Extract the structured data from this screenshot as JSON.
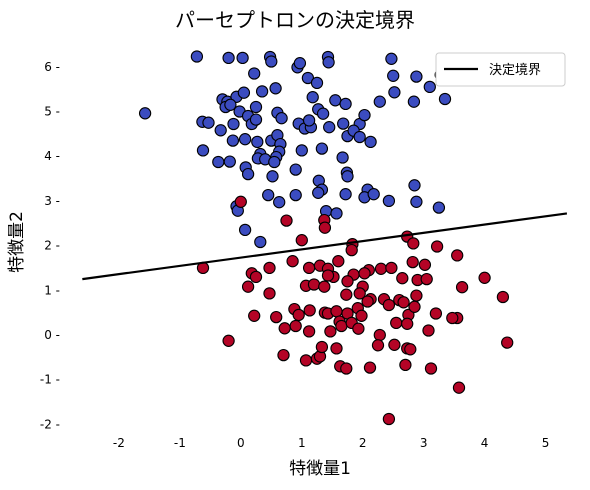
{
  "chart_data": {
    "type": "scatter",
    "title": "パーセプトロンの決定境界",
    "xlabel": "特徴量1",
    "ylabel": "特徴量2",
    "xlim": [
      -2.95,
      5.45
    ],
    "ylim": [
      -2.35,
      6.6
    ],
    "xticks": [
      -2,
      -1,
      0,
      1,
      2,
      3,
      4,
      5
    ],
    "yticks": [
      -2,
      -1,
      0,
      1,
      2,
      3,
      4,
      5,
      6
    ],
    "grid": false,
    "legend_position": "top-right",
    "legend": [
      {
        "label": "決定境界",
        "color": "#000000"
      }
    ],
    "decision_boundary": {
      "x": [
        -2.6,
        5.35
      ],
      "y": [
        1.25,
        2.72
      ]
    },
    "series": [
      {
        "color": "#3b4cc0",
        "points": [
          [
            -0.72,
            6.23
          ],
          [
            -0.2,
            6.2
          ],
          [
            0.03,
            6.2
          ],
          [
            0.48,
            6.22
          ],
          [
            0.5,
            6.12
          ],
          [
            0.93,
            5.99
          ],
          [
            0.97,
            6.08
          ],
          [
            1.43,
            6.22
          ],
          [
            1.44,
            6.1
          ],
          [
            2.47,
            6.18
          ],
          [
            3.55,
            6.17
          ],
          [
            0.22,
            5.85
          ],
          [
            1.1,
            5.75
          ],
          [
            1.25,
            5.64
          ],
          [
            2.5,
            5.8
          ],
          [
            2.88,
            5.78
          ],
          [
            3.28,
            5.82
          ],
          [
            3.1,
            5.55
          ],
          [
            -1.57,
            4.96
          ],
          [
            -0.3,
            5.27
          ],
          [
            -0.22,
            5.22
          ],
          [
            -0.07,
            5.33
          ],
          [
            -0.25,
            5.1
          ],
          [
            -0.17,
            5.15
          ],
          [
            0.05,
            5.42
          ],
          [
            0.35,
            5.45
          ],
          [
            0.57,
            5.52
          ],
          [
            0.25,
            5.1
          ],
          [
            1.18,
            5.32
          ],
          [
            1.27,
            5.05
          ],
          [
            -0.02,
            5.0
          ],
          [
            0.12,
            4.9
          ],
          [
            0.6,
            4.97
          ],
          [
            0.67,
            4.85
          ],
          [
            1.55,
            5.25
          ],
          [
            1.72,
            5.17
          ],
          [
            2.28,
            5.22
          ],
          [
            2.52,
            5.43
          ],
          [
            2.84,
            5.22
          ],
          [
            3.35,
            5.28
          ],
          [
            1.35,
            4.95
          ],
          [
            -0.63,
            4.77
          ],
          [
            -0.53,
            4.75
          ],
          [
            -0.33,
            4.58
          ],
          [
            -0.12,
            4.72
          ],
          [
            0.18,
            4.72
          ],
          [
            0.25,
            4.82
          ],
          [
            0.95,
            4.73
          ],
          [
            1.05,
            4.62
          ],
          [
            1.15,
            4.65
          ],
          [
            1.12,
            4.8
          ],
          [
            1.45,
            4.65
          ],
          [
            1.68,
            4.73
          ],
          [
            1.95,
            4.72
          ],
          [
            2.03,
            4.92
          ],
          [
            -0.13,
            4.35
          ],
          [
            0.07,
            4.38
          ],
          [
            0.27,
            4.32
          ],
          [
            0.32,
            4.05
          ],
          [
            0.5,
            4.35
          ],
          [
            0.6,
            4.47
          ],
          [
            0.65,
            4.27
          ],
          [
            0.63,
            4.1
          ],
          [
            1.75,
            4.45
          ],
          [
            1.85,
            4.57
          ],
          [
            1.95,
            4.43
          ],
          [
            2.13,
            4.32
          ],
          [
            -0.62,
            4.13
          ],
          [
            -0.37,
            3.87
          ],
          [
            -0.18,
            3.88
          ],
          [
            0.08,
            3.75
          ],
          [
            0.28,
            3.95
          ],
          [
            0.4,
            3.93
          ],
          [
            0.58,
            3.98
          ],
          [
            0.55,
            3.87
          ],
          [
            0.9,
            3.7
          ],
          [
            1.0,
            4.13
          ],
          [
            1.33,
            4.17
          ],
          [
            1.67,
            3.97
          ],
          [
            1.74,
            3.63
          ],
          [
            0.12,
            3.6
          ],
          [
            0.52,
            3.55
          ],
          [
            1.28,
            3.45
          ],
          [
            1.33,
            3.25
          ],
          [
            1.27,
            3.18
          ],
          [
            1.75,
            3.55
          ],
          [
            1.72,
            3.15
          ],
          [
            2.08,
            3.25
          ],
          [
            2.03,
            3.08
          ],
          [
            2.18,
            3.15
          ],
          [
            2.43,
            3.0
          ],
          [
            2.85,
            3.35
          ],
          [
            2.88,
            2.98
          ],
          [
            0.45,
            3.13
          ],
          [
            0.9,
            3.13
          ],
          [
            0.63,
            2.97
          ],
          [
            1.4,
            2.77
          ],
          [
            1.57,
            2.72
          ],
          [
            -0.07,
            2.88
          ],
          [
            -0.05,
            2.78
          ],
          [
            0.07,
            2.35
          ],
          [
            0.32,
            2.08
          ],
          [
            3.25,
            2.85
          ]
        ]
      },
      {
        "color": "#b40426",
        "points": [
          [
            0.0,
            2.98
          ],
          [
            0.75,
            2.56
          ],
          [
            1.37,
            2.57
          ],
          [
            1.38,
            2.4
          ],
          [
            1.0,
            2.12
          ],
          [
            1.83,
            2.03
          ],
          [
            1.82,
            1.9
          ],
          [
            2.73,
            2.2
          ],
          [
            2.83,
            2.05
          ],
          [
            3.22,
            1.98
          ],
          [
            -0.62,
            1.5
          ],
          [
            0.18,
            1.38
          ],
          [
            0.25,
            1.3
          ],
          [
            0.47,
            1.5
          ],
          [
            0.85,
            1.65
          ],
          [
            1.12,
            1.5
          ],
          [
            1.3,
            1.55
          ],
          [
            1.43,
            1.48
          ],
          [
            1.52,
            1.3
          ],
          [
            1.6,
            1.65
          ],
          [
            1.85,
            1.35
          ],
          [
            2.1,
            1.45
          ],
          [
            2.3,
            1.48
          ],
          [
            2.47,
            1.5
          ],
          [
            2.82,
            1.63
          ],
          [
            3.02,
            1.57
          ],
          [
            3.55,
            1.78
          ],
          [
            0.12,
            1.08
          ],
          [
            0.47,
            0.93
          ],
          [
            1.07,
            1.1
          ],
          [
            1.2,
            1.13
          ],
          [
            1.37,
            1.08
          ],
          [
            1.43,
            1.33
          ],
          [
            1.75,
            1.2
          ],
          [
            2.0,
            1.08
          ],
          [
            2.03,
            1.38
          ],
          [
            2.65,
            1.27
          ],
          [
            2.9,
            1.23
          ],
          [
            3.63,
            1.07
          ],
          [
            4.0,
            1.28
          ],
          [
            4.3,
            0.85
          ],
          [
            1.73,
            0.9
          ],
          [
            1.95,
            0.93
          ],
          [
            2.13,
            0.8
          ],
          [
            2.35,
            0.8
          ],
          [
            2.6,
            0.78
          ],
          [
            2.88,
            0.88
          ],
          [
            3.05,
            1.25
          ],
          [
            0.22,
            0.43
          ],
          [
            0.58,
            0.4
          ],
          [
            0.88,
            0.58
          ],
          [
            0.95,
            0.45
          ],
          [
            1.13,
            0.55
          ],
          [
            1.38,
            0.5
          ],
          [
            1.43,
            0.48
          ],
          [
            1.57,
            0.53
          ],
          [
            1.62,
            0.3
          ],
          [
            1.75,
            0.48
          ],
          [
            1.92,
            0.6
          ],
          [
            1.98,
            0.43
          ],
          [
            2.08,
            0.75
          ],
          [
            2.43,
            0.67
          ],
          [
            2.67,
            0.73
          ],
          [
            2.75,
            0.45
          ],
          [
            2.85,
            0.63
          ],
          [
            3.2,
            0.48
          ],
          [
            3.55,
            0.38
          ],
          [
            -0.2,
            -0.13
          ],
          [
            0.72,
            0.15
          ],
          [
            0.9,
            0.2
          ],
          [
            1.12,
            0.08
          ],
          [
            1.47,
            0.08
          ],
          [
            1.65,
            0.2
          ],
          [
            1.82,
            0.27
          ],
          [
            1.93,
            0.14
          ],
          [
            2.28,
            0.0
          ],
          [
            2.55,
            0.27
          ],
          [
            2.73,
            0.25
          ],
          [
            3.08,
            0.1
          ],
          [
            3.47,
            0.38
          ],
          [
            4.37,
            -0.17
          ],
          [
            0.7,
            -0.45
          ],
          [
            1.07,
            -0.57
          ],
          [
            1.25,
            -0.53
          ],
          [
            1.3,
            -0.48
          ],
          [
            1.33,
            -0.27
          ],
          [
            1.57,
            -0.3
          ],
          [
            1.63,
            -0.7
          ],
          [
            1.73,
            -0.75
          ],
          [
            2.12,
            -0.73
          ],
          [
            2.25,
            -0.23
          ],
          [
            2.52,
            -0.22
          ],
          [
            2.7,
            -0.67
          ],
          [
            2.73,
            -0.3
          ],
          [
            2.78,
            -0.32
          ],
          [
            3.12,
            -0.75
          ],
          [
            3.58,
            -1.18
          ],
          [
            2.43,
            -1.88
          ]
        ]
      }
    ]
  }
}
